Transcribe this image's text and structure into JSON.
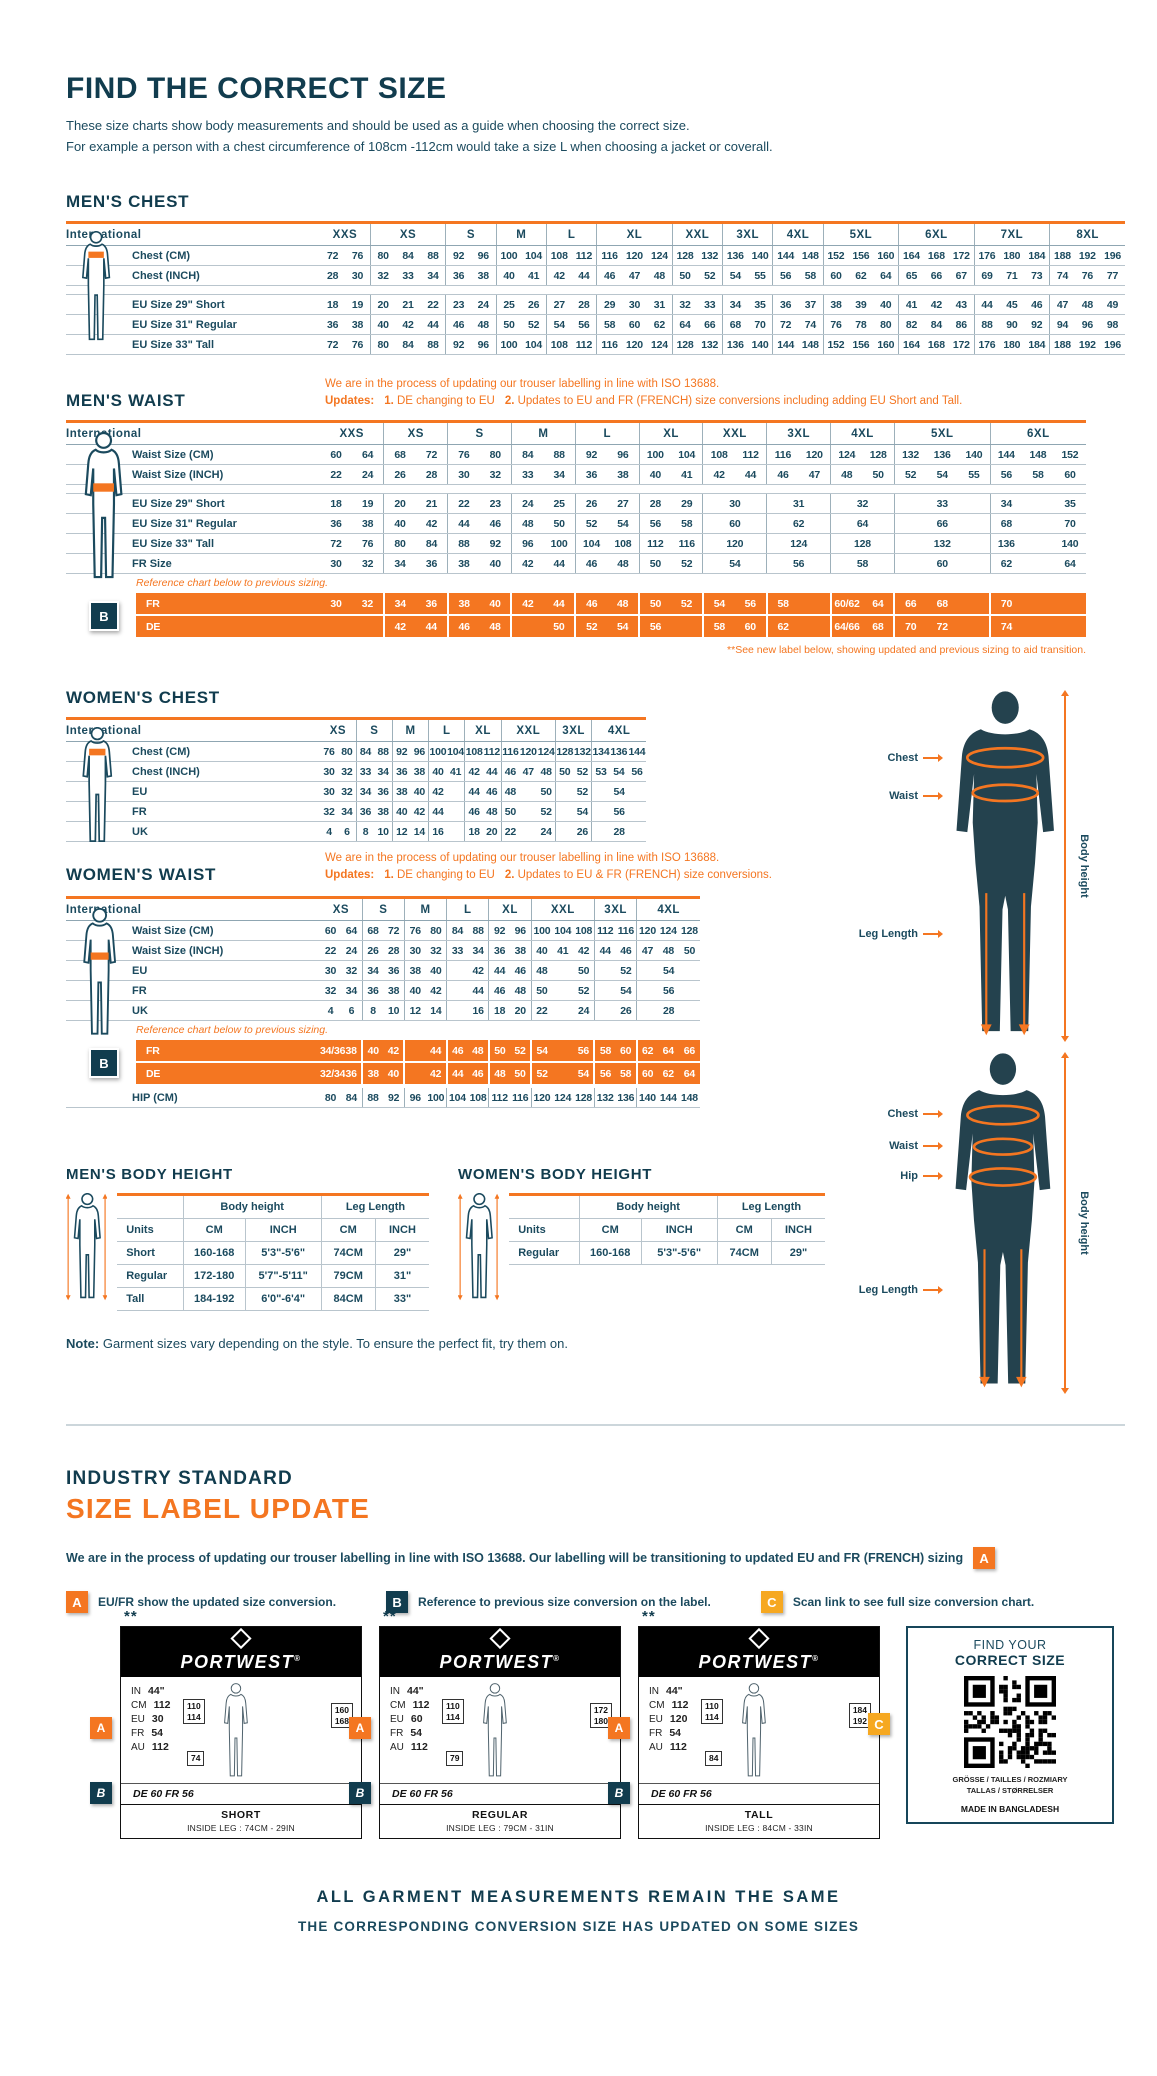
{
  "header": {
    "title": "FIND THE CORRECT SIZE",
    "desc1": "These size charts show body measurements and should be used as a guide when choosing the correct size.",
    "desc2": "For example a person with a chest circumference of 108cm -112cm would take a size L when choosing a jacket or coverall."
  },
  "colors": {
    "navy": "#113c4e",
    "orange": "#f47621",
    "amber": "#f6a821"
  },
  "mens_chest": {
    "title": "MEN'S CHEST",
    "intl": "International",
    "groups": [
      [
        "XXS",
        2
      ],
      [
        "XS",
        3
      ],
      [
        "S",
        2
      ],
      [
        "M",
        2
      ],
      [
        "L",
        2
      ],
      [
        "XL",
        3
      ],
      [
        "XXL",
        2
      ],
      [
        "3XL",
        2
      ],
      [
        "4XL",
        2
      ],
      [
        "5XL",
        3
      ],
      [
        "6XL",
        3
      ],
      [
        "7XL",
        3
      ],
      [
        "8XL",
        3
      ]
    ],
    "rows": [
      {
        "label": "Chest (CM)",
        "cells": [
          "72",
          "76",
          "80",
          "84",
          "88",
          "92",
          "96",
          "100",
          "104",
          "108",
          "112",
          "116",
          "120",
          "124",
          "128",
          "132",
          "136",
          "140",
          "144",
          "148",
          "152",
          "156",
          "160",
          "164",
          "168",
          "172",
          "176",
          "180",
          "184",
          "188",
          "192",
          "196"
        ]
      },
      {
        "label": "Chest (INCH)",
        "cells": [
          "28",
          "30",
          "32",
          "33",
          "34",
          "36",
          "38",
          "40",
          "41",
          "42",
          "44",
          "46",
          "47",
          "48",
          "50",
          "52",
          "54",
          "55",
          "56",
          "58",
          "60",
          "62",
          "64",
          "65",
          "66",
          "67",
          "69",
          "71",
          "73",
          "74",
          "76",
          "77"
        ]
      },
      {
        "gap": true
      },
      {
        "label": "EU Size 29\" Short",
        "cells": [
          "18",
          "19",
          "20",
          "21",
          "22",
          "23",
          "24",
          "25",
          "26",
          "27",
          "28",
          "29",
          "30",
          "31",
          "32",
          "33",
          "34",
          "35",
          "36",
          "37",
          "38",
          "39",
          "40",
          "41",
          "42",
          "43",
          "44",
          "45",
          "46",
          "47",
          "48",
          "49"
        ]
      },
      {
        "label": "EU Size 31\" Regular",
        "cells": [
          "36",
          "38",
          "40",
          "42",
          "44",
          "46",
          "48",
          "50",
          "52",
          "54",
          "56",
          "58",
          "60",
          "62",
          "64",
          "66",
          "68",
          "70",
          "72",
          "74",
          "76",
          "78",
          "80",
          "82",
          "84",
          "86",
          "88",
          "90",
          "92",
          "94",
          "96",
          "98"
        ]
      },
      {
        "label": "EU Size 33\" Tall",
        "cells": [
          "72",
          "76",
          "80",
          "84",
          "88",
          "92",
          "96",
          "100",
          "104",
          "108",
          "112",
          "116",
          "120",
          "124",
          "128",
          "132",
          "136",
          "140",
          "144",
          "148",
          "152",
          "156",
          "160",
          "164",
          "168",
          "172",
          "176",
          "180",
          "184",
          "188",
          "192",
          "196"
        ]
      }
    ]
  },
  "mens_waist": {
    "title": "MEN'S WAIST",
    "iso_note": "We are in the process of updating our trouser labelling in line with ISO 13688.",
    "updates_label": "Updates:",
    "u1n": "1.",
    "u1": "DE changing to EU",
    "u2n": "2.",
    "u2": "Updates to EU and FR (FRENCH) size conversions including adding EU Short and Tall.",
    "intl": "International",
    "groups": [
      [
        "XXS",
        2
      ],
      [
        "XS",
        2
      ],
      [
        "S",
        2
      ],
      [
        "M",
        2
      ],
      [
        "L",
        2
      ],
      [
        "XL",
        2
      ],
      [
        "XXL",
        2
      ],
      [
        "3XL",
        2
      ],
      [
        "4XL",
        2
      ],
      [
        "5XL",
        3
      ],
      [
        "6XL",
        3
      ]
    ],
    "rows": [
      {
        "label": "Waist Size (CM)",
        "cells": [
          "60",
          "64",
          "68",
          "72",
          "76",
          "80",
          "84",
          "88",
          "92",
          "96",
          "100",
          "104",
          "108",
          "112",
          "116",
          "120",
          "124",
          "128",
          "132",
          "136",
          "140",
          "144",
          "148",
          "152"
        ]
      },
      {
        "label": "Waist Size (INCH)",
        "cells": [
          "22",
          "24",
          "26",
          "28",
          "30",
          "32",
          "33",
          "34",
          "36",
          "38",
          "40",
          "41",
          "42",
          "44",
          "46",
          "47",
          "48",
          "50",
          "52",
          "54",
          "55",
          "56",
          "58",
          "60"
        ]
      },
      {
        "gap": true
      },
      {
        "label": "EU Size 29\" Short",
        "cells": [
          "18",
          "19",
          "20",
          "21",
          "22",
          "23",
          "24",
          "25",
          "26",
          "27",
          "28",
          "29",
          [
            "30",
            2
          ],
          [
            "31",
            2
          ],
          [
            "32",
            2
          ],
          [
            "33",
            3
          ],
          "34",
          "",
          "35"
        ]
      },
      {
        "label": "EU Size 31\" Regular",
        "cells": [
          "36",
          "38",
          "40",
          "42",
          "44",
          "46",
          "48",
          "50",
          "52",
          "54",
          "56",
          "58",
          [
            "60",
            2
          ],
          [
            "62",
            2
          ],
          [
            "64",
            2
          ],
          [
            "66",
            3
          ],
          "68",
          "",
          "70"
        ]
      },
      {
        "label": "EU Size 33\" Tall",
        "cells": [
          "72",
          "76",
          "80",
          "84",
          "88",
          "92",
          "96",
          "100",
          "104",
          "108",
          "112",
          "116",
          [
            "120",
            2
          ],
          [
            "124",
            2
          ],
          [
            "128",
            2
          ],
          [
            "132",
            3
          ],
          "136",
          "",
          "140"
        ]
      },
      {
        "label": "FR Size",
        "cells": [
          "30",
          "32",
          "34",
          "36",
          "38",
          "40",
          "42",
          "44",
          "46",
          "48",
          "50",
          "52",
          [
            "54",
            2
          ],
          [
            "56",
            2
          ],
          [
            "58",
            2
          ],
          [
            "60",
            3
          ],
          "62",
          "",
          "64"
        ]
      }
    ],
    "ref_note": "Reference chart below to previous sizing.",
    "badge_b": "B",
    "orange_rows": [
      {
        "label": "FR",
        "cells": [
          "30",
          "32",
          "34",
          "36",
          "38",
          "40",
          "42",
          "44",
          "46",
          "48",
          "50",
          "52",
          "54",
          "56",
          "58",
          "",
          "60/62",
          "64",
          "66",
          "68",
          "",
          "70",
          "",
          ""
        ]
      },
      {
        "label": "DE",
        "cells": [
          "",
          "",
          "42",
          "44",
          "46",
          "48",
          "",
          "50",
          "52",
          "54",
          "56",
          "",
          "58",
          "60",
          "62",
          "",
          "64/66",
          "68",
          "70",
          "72",
          "",
          "74",
          "",
          ""
        ]
      }
    ],
    "footnote": "**See new label below, showing updated and previous sizing to aid transition."
  },
  "womens_chest": {
    "title": "WOMEN'S CHEST",
    "intl": "International",
    "groups": [
      [
        "XS",
        2
      ],
      [
        "S",
        2
      ],
      [
        "M",
        2
      ],
      [
        "L",
        2
      ],
      [
        "XL",
        2
      ],
      [
        "XXL",
        3
      ],
      [
        "3XL",
        2
      ],
      [
        "4XL",
        3
      ]
    ],
    "rows": [
      {
        "label": "Chest (CM)",
        "cells": [
          "76",
          "80",
          "84",
          "88",
          "92",
          "96",
          "100",
          "104",
          "108",
          "112",
          "116",
          "120",
          "124",
          "128",
          "132",
          "134",
          "136",
          "144"
        ]
      },
      {
        "label": "Chest (INCH)",
        "cells": [
          "30",
          "32",
          "33",
          "34",
          "36",
          "38",
          "40",
          "41",
          "42",
          "44",
          "46",
          "47",
          "48",
          "50",
          "52",
          "53",
          "54",
          "56"
        ]
      },
      {
        "label": "EU",
        "cells": [
          "30",
          "32",
          "34",
          "36",
          "38",
          "40",
          "42",
          "",
          "44",
          "46",
          "48",
          "",
          "50",
          "",
          "52",
          [
            "54",
            3
          ]
        ]
      },
      {
        "label": "FR",
        "cells": [
          "32",
          "34",
          "36",
          "38",
          "40",
          "42",
          "44",
          "",
          "46",
          "48",
          "50",
          "",
          "52",
          "",
          "54",
          [
            "56",
            3
          ]
        ]
      },
      {
        "label": "UK",
        "cells": [
          "4",
          "6",
          "8",
          "10",
          "12",
          "14",
          "16",
          "",
          "18",
          "20",
          "22",
          "",
          "24",
          "",
          "26",
          [
            "28",
            3
          ]
        ]
      }
    ]
  },
  "womens_waist": {
    "title": "WOMEN'S WAIST",
    "iso_note": "We are in the process of updating our trouser labelling in line with ISO 13688.",
    "updates_label": "Updates:",
    "u1n": "1.",
    "u1": "DE changing to EU",
    "u2n": "2.",
    "u2": "Updates to EU & FR (FRENCH) size conversions.",
    "intl": "International",
    "groups": [
      [
        "XS",
        2
      ],
      [
        "S",
        2
      ],
      [
        "M",
        2
      ],
      [
        "L",
        2
      ],
      [
        "XL",
        2
      ],
      [
        "XXL",
        3
      ],
      [
        "3XL",
        2
      ],
      [
        "4XL",
        3
      ]
    ],
    "rows": [
      {
        "label": "Waist Size (CM)",
        "cells": [
          "60",
          "64",
          "68",
          "72",
          "76",
          "80",
          "84",
          "88",
          "92",
          "96",
          "100",
          "104",
          "108",
          "112",
          "116",
          "120",
          "124",
          "128"
        ]
      },
      {
        "label": "Waist Size (INCH)",
        "cells": [
          "22",
          "24",
          "26",
          "28",
          "30",
          "32",
          "33",
          "34",
          "36",
          "38",
          "40",
          "41",
          "42",
          "44",
          "46",
          "47",
          "48",
          "50"
        ]
      },
      {
        "label": "EU",
        "cells": [
          "30",
          "32",
          "34",
          "36",
          "38",
          "40",
          "",
          "42",
          "44",
          "46",
          "48",
          "",
          "50",
          "",
          "52",
          [
            "54",
            3
          ]
        ]
      },
      {
        "label": "FR",
        "cells": [
          "32",
          "34",
          "36",
          "38",
          "40",
          "42",
          "",
          "44",
          "46",
          "48",
          "50",
          "",
          "52",
          "",
          "54",
          [
            "56",
            3
          ]
        ]
      },
      {
        "label": "UK",
        "cells": [
          "4",
          "6",
          "8",
          "10",
          "12",
          "14",
          "",
          "16",
          "18",
          "20",
          "22",
          "",
          "24",
          "",
          "26",
          [
            "28",
            3
          ]
        ]
      }
    ],
    "ref_note": "Reference chart below to previous sizing.",
    "badge_b": "B",
    "orange_rows": [
      {
        "label": "FR",
        "cells": [
          "34/36",
          "38",
          "40",
          "42",
          "",
          "44",
          "46",
          "48",
          "50",
          "52",
          "54",
          "",
          "56",
          "58",
          "60",
          "62",
          "64",
          "66"
        ]
      },
      {
        "label": "DE",
        "cells": [
          "32/34",
          "36",
          "38",
          "40",
          "",
          "42",
          "44",
          "46",
          "48",
          "50",
          "52",
          "",
          "54",
          "56",
          "58",
          "60",
          "62",
          "64"
        ]
      }
    ],
    "hip_row": {
      "label": "HIP (CM)",
      "cells": [
        "80",
        "84",
        "88",
        "92",
        "96",
        "100",
        "104",
        "108",
        "112",
        "116",
        "120",
        "124",
        "128",
        "132",
        "136",
        "140",
        "144",
        "148"
      ]
    }
  },
  "models": {
    "m1": {
      "labels": [
        "Chest",
        "Waist",
        "Leg Length"
      ],
      "body_height": "Body height"
    },
    "m2": {
      "labels": [
        "Chest",
        "Waist",
        "Hip",
        "Leg Length"
      ],
      "body_height": "Body height"
    }
  },
  "mens_bh": {
    "title": "MEN'S BODY HEIGHT",
    "units": "Units",
    "g1": "Body height",
    "g2": "Leg Length",
    "cols": [
      "CM",
      "INCH",
      "CM",
      "INCH"
    ],
    "rows": [
      [
        "Short",
        "160-168",
        "5'3\"-5'6\"",
        "74CM",
        "29\""
      ],
      [
        "Regular",
        "172-180",
        "5'7\"-5'11\"",
        "79CM",
        "31\""
      ],
      [
        "Tall",
        "184-192",
        "6'0\"-6'4\"",
        "84CM",
        "33\""
      ]
    ]
  },
  "womens_bh": {
    "title": "WOMEN'S BODY HEIGHT",
    "units": "Units",
    "g1": "Body height",
    "g2": "Leg Length",
    "cols": [
      "CM",
      "INCH",
      "CM",
      "INCH"
    ],
    "rows": [
      [
        "Regular",
        "160-168",
        "5'3\"-5'6\"",
        "74CM",
        "29\""
      ]
    ]
  },
  "note": {
    "label": "Note:",
    "text": "Garment sizes vary depending on the style. To ensure the perfect fit, try them on."
  },
  "industry": {
    "line1": "INDUSTRY STANDARD",
    "line2": "SIZE LABEL UPDATE",
    "intro": "We are in the process of updating our trouser labelling in line with ISO 13688. Our labelling will be transitioning to updated EU and FR (FRENCH) sizing",
    "intro_badge": "A",
    "badges": [
      {
        "k": "A",
        "text": "EU/FR show the updated size conversion."
      },
      {
        "k": "B",
        "text": "Reference to previous size conversion on the label."
      },
      {
        "k": "C",
        "text": "Scan link to see full size conversion chart."
      }
    ]
  },
  "labels": {
    "stars": "**",
    "brand": "PORTWEST",
    "reg": "®",
    "row_labels": {
      "in": "IN",
      "cm": "CM",
      "eu": "EU",
      "fr": "FR",
      "au": "AU"
    },
    "badge_a": "A",
    "badge_b": "B",
    "badge_c": "C",
    "cards": [
      {
        "in": "44\"",
        "cm": "112",
        "eu": "30",
        "fr": "54",
        "au": "112",
        "defr": "DE 60 FR 56",
        "bw1": "110",
        "bw2": "114",
        "bh1": "160",
        "bh2": "168",
        "bleg": "74",
        "fit": "SHORT",
        "leg": "INSIDE LEG : 74CM - 29IN"
      },
      {
        "in": "44\"",
        "cm": "112",
        "eu": "60",
        "fr": "54",
        "au": "112",
        "defr": "DE 60 FR 56",
        "bw1": "110",
        "bw2": "114",
        "bh1": "172",
        "bh2": "180",
        "bleg": "79",
        "fit": "REGULAR",
        "leg": "INSIDE LEG : 79CM - 31IN"
      },
      {
        "in": "44\"",
        "cm": "112",
        "eu": "120",
        "fr": "54",
        "au": "112",
        "defr": "DE 60 FR 56",
        "bw1": "110",
        "bw2": "114",
        "bh1": "184",
        "bh2": "192",
        "bleg": "84",
        "fit": "TALL",
        "leg": "INSIDE LEG : 84CM - 33IN"
      }
    ]
  },
  "qr": {
    "find": "FIND YOUR",
    "correct": "CORRECT SIZE",
    "langs1": "GRÖSSE / TAILLES / ROZMIARY",
    "langs2": "TALLAS / STØRRELSER",
    "made": "MADE IN BANGLADESH"
  },
  "bottom": {
    "line1": "ALL GARMENT MEASUREMENTS REMAIN THE SAME",
    "line2": "THE CORRESPONDING CONVERSION SIZE HAS UPDATED ON SOME SIZES"
  }
}
